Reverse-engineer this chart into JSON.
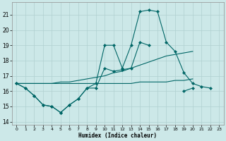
{
  "xlabel": "Humidex (Indice chaleur)",
  "bg_color": "#cce8e8",
  "grid_color": "#b0d0d0",
  "line_color": "#006666",
  "xlim": [
    -0.5,
    23.5
  ],
  "ylim": [
    13.8,
    21.8
  ],
  "yticks": [
    14,
    15,
    16,
    17,
    18,
    19,
    20,
    21
  ],
  "xticks": [
    0,
    1,
    2,
    3,
    4,
    5,
    6,
    7,
    8,
    9,
    10,
    11,
    12,
    13,
    14,
    15,
    16,
    17,
    18,
    19,
    20,
    21,
    22,
    23
  ],
  "series_jagged1_x": [
    0,
    1,
    2,
    3,
    4,
    5,
    6,
    7,
    8,
    9,
    10,
    11,
    12,
    13,
    14,
    15,
    16,
    17,
    18,
    19,
    20,
    21,
    22
  ],
  "series_jagged1_y": [
    16.5,
    16.2,
    15.7,
    15.1,
    15.0,
    14.6,
    15.1,
    15.5,
    16.2,
    16.5,
    19.0,
    19.0,
    17.5,
    19.0,
    21.2,
    21.3,
    21.2,
    19.2,
    18.6,
    17.2,
    16.5,
    16.3,
    16.2
  ],
  "series_jagged2_x": [
    0,
    1,
    2,
    3,
    4,
    5,
    6,
    7,
    8,
    9,
    10,
    11,
    12,
    13,
    14,
    15,
    16,
    17,
    18,
    19,
    20,
    21,
    22,
    23
  ],
  "series_jagged2_y": [
    16.5,
    16.2,
    15.7,
    15.1,
    15.0,
    14.6,
    15.1,
    15.5,
    16.2,
    16.2,
    17.5,
    17.3,
    17.4,
    17.5,
    19.2,
    19.0,
    null,
    null,
    null,
    16.0,
    16.2,
    null,
    null,
    null
  ],
  "series_trend1_x": [
    0,
    1,
    2,
    3,
    4,
    5,
    6,
    7,
    8,
    9,
    10,
    11,
    12,
    13,
    14,
    15,
    16,
    17,
    18,
    19,
    20
  ],
  "series_trend1_y": [
    16.5,
    16.5,
    16.5,
    16.5,
    16.5,
    16.6,
    16.6,
    16.7,
    16.8,
    16.9,
    17.0,
    17.2,
    17.3,
    17.5,
    17.7,
    17.9,
    18.1,
    18.3,
    18.4,
    18.5,
    18.6
  ],
  "series_trend2_x": [
    0,
    1,
    2,
    3,
    4,
    5,
    6,
    7,
    8,
    9,
    10,
    11,
    12,
    13,
    14,
    15,
    16,
    17,
    18,
    19,
    20
  ],
  "series_trend2_y": [
    16.5,
    16.5,
    16.5,
    16.5,
    16.5,
    16.5,
    16.5,
    16.5,
    16.5,
    16.5,
    16.5,
    16.5,
    16.5,
    16.5,
    16.6,
    16.6,
    16.6,
    16.6,
    16.7,
    16.7,
    16.8
  ]
}
